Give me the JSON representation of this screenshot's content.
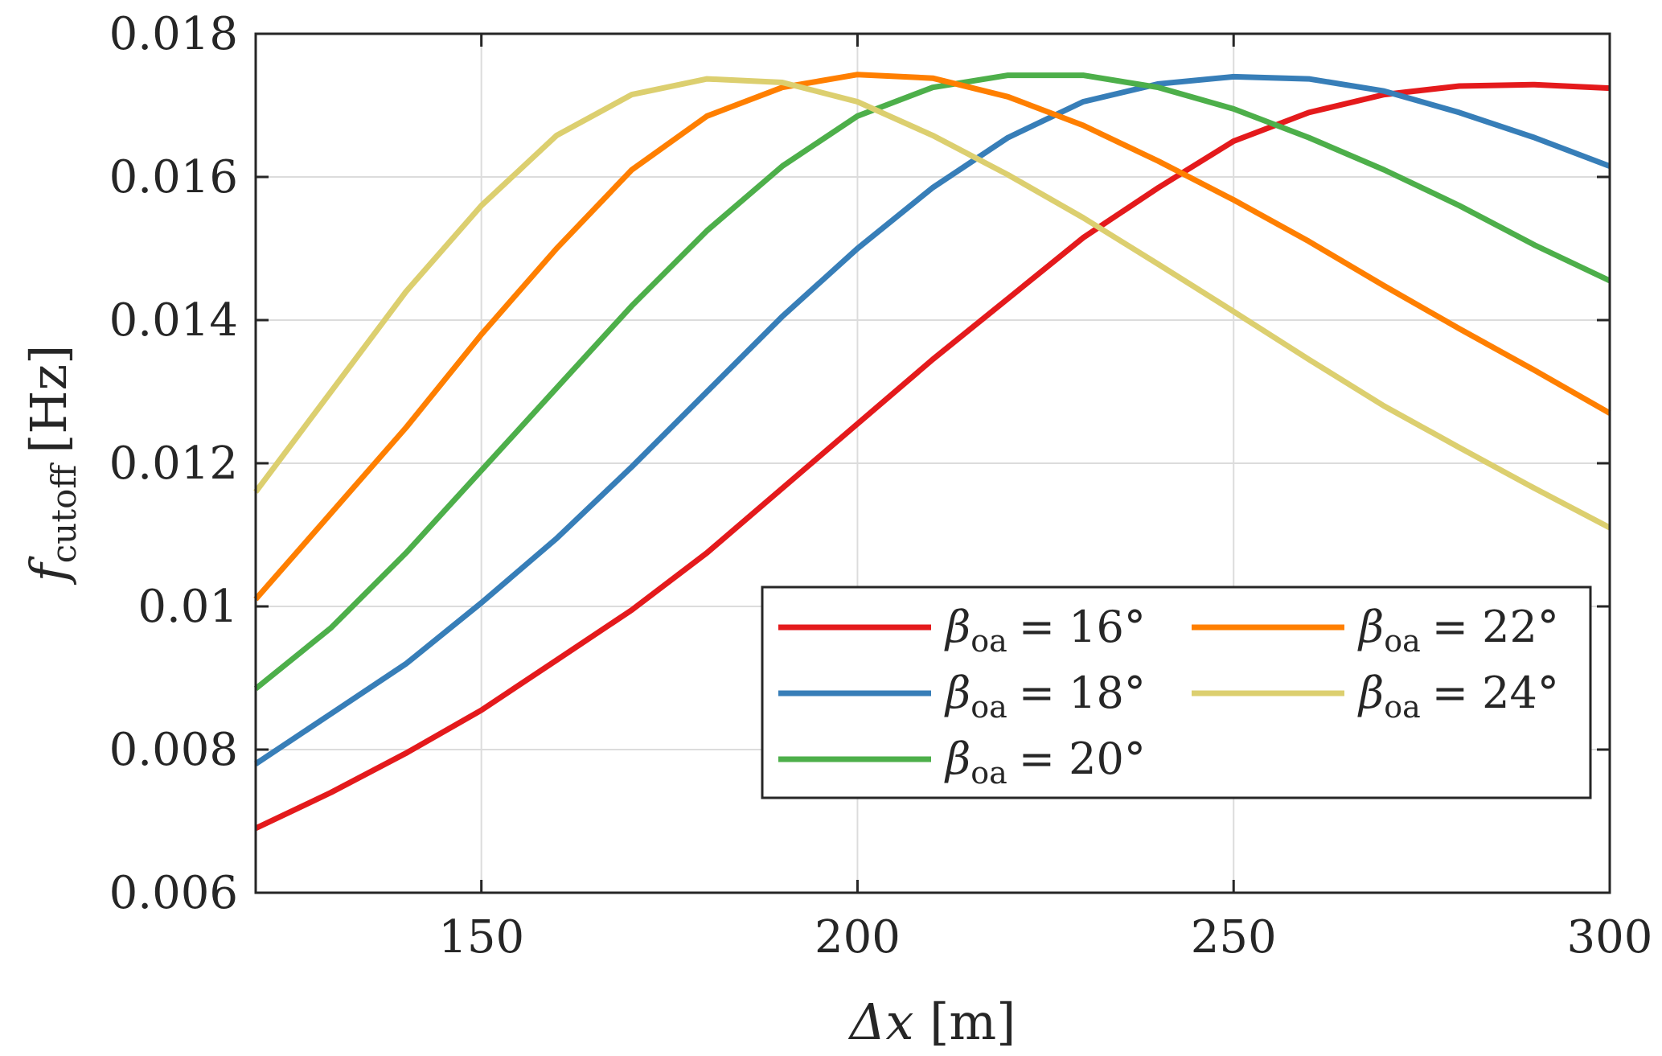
{
  "chart_data": {
    "type": "line",
    "title": "",
    "xlabel": {
      "symbol": "Δx",
      "unit": "[m]"
    },
    "ylabel": {
      "symbol": "f",
      "subscript": "cutoff",
      "unit": "[Hz]"
    },
    "xlim": [
      120,
      300
    ],
    "ylim": [
      0.006,
      0.018
    ],
    "grid": true,
    "legend_position": "lower-right",
    "xticks": [
      150,
      200,
      250,
      300
    ],
    "xtick_labels": [
      "150",
      "200",
      "250",
      "300"
    ],
    "yticks": [
      0.006,
      0.008,
      0.01,
      0.012,
      0.014,
      0.016,
      0.018
    ],
    "ytick_labels": [
      "0.006",
      "0.008",
      "0.01",
      "0.012",
      "0.014",
      "0.016",
      "0.018"
    ],
    "x": [
      120,
      130,
      140,
      150,
      160,
      170,
      180,
      190,
      200,
      210,
      220,
      230,
      240,
      250,
      260,
      270,
      280,
      290,
      300
    ],
    "series": [
      {
        "name": "16°",
        "legend_symbol": "β",
        "legend_subscript": "oa",
        "legend_eq": "= 16°",
        "color": "#e41a1c",
        "values": [
          0.0069,
          0.0074,
          0.00795,
          0.00855,
          0.00925,
          0.00995,
          0.01075,
          0.01165,
          0.01255,
          0.01345,
          0.0143,
          0.01515,
          0.01585,
          0.0165,
          0.0169,
          0.01715,
          0.01727,
          0.01729,
          0.01724
        ]
      },
      {
        "name": "18°",
        "legend_symbol": "β",
        "legend_subscript": "oa",
        "legend_eq": "= 18°",
        "color": "#377eb8",
        "values": [
          0.0078,
          0.0085,
          0.0092,
          0.01005,
          0.01095,
          0.01195,
          0.013,
          0.01405,
          0.015,
          0.01585,
          0.01655,
          0.01705,
          0.0173,
          0.0174,
          0.01737,
          0.0172,
          0.0169,
          0.01655,
          0.01615
        ]
      },
      {
        "name": "20°",
        "legend_symbol": "β",
        "legend_subscript": "oa",
        "legend_eq": "= 20°",
        "color": "#4daf4a",
        "values": [
          0.00885,
          0.0097,
          0.01075,
          0.0119,
          0.01305,
          0.0142,
          0.01525,
          0.01615,
          0.01685,
          0.01725,
          0.01742,
          0.01742,
          0.01725,
          0.01695,
          0.01655,
          0.0161,
          0.0156,
          0.01505,
          0.01455
        ]
      },
      {
        "name": "22°",
        "legend_symbol": "β",
        "legend_subscript": "oa",
        "legend_eq": "= 22°",
        "color": "#ff7f00",
        "values": [
          0.0101,
          0.0113,
          0.0125,
          0.0138,
          0.015,
          0.0161,
          0.01685,
          0.01725,
          0.01743,
          0.01738,
          0.01712,
          0.01672,
          0.01622,
          0.01568,
          0.0151,
          0.01448,
          0.01388,
          0.0133,
          0.0127
        ]
      },
      {
        "name": "24°",
        "legend_symbol": "β",
        "legend_subscript": "oa",
        "legend_eq": "= 24°",
        "color": "#dccf6f",
        "values": [
          0.0116,
          0.013,
          0.0144,
          0.0156,
          0.01658,
          0.01715,
          0.01737,
          0.01732,
          0.01705,
          0.01658,
          0.01603,
          0.01543,
          0.01478,
          0.01412,
          0.01345,
          0.0128,
          0.01222,
          0.01165,
          0.0111
        ]
      }
    ]
  }
}
